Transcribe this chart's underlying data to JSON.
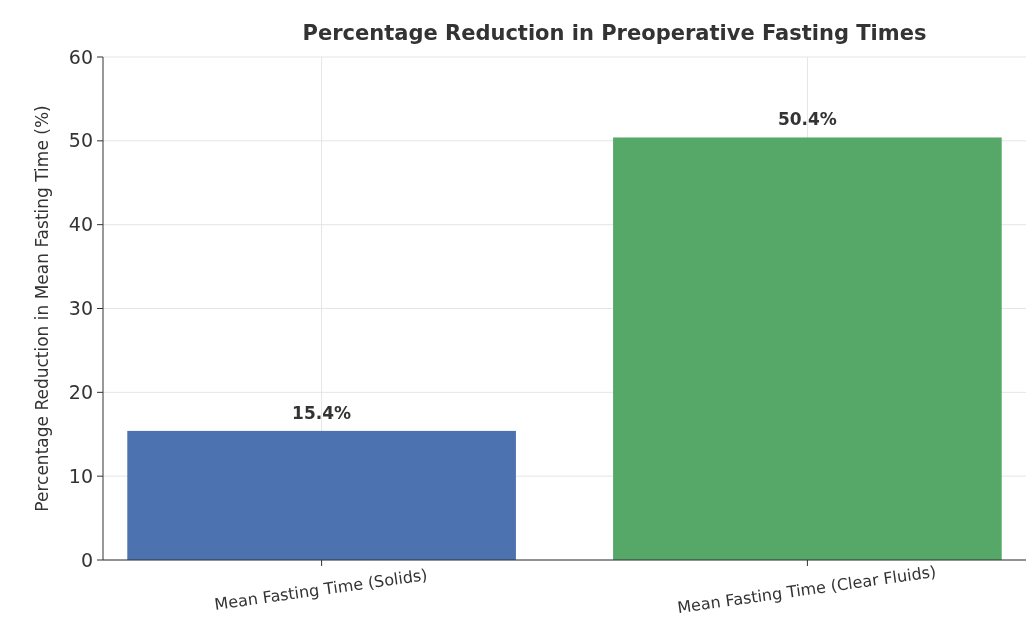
{
  "chart_data": {
    "type": "bar",
    "title": "Percentage Reduction in Preoperative Fasting Times",
    "ylabel": "Percentage Reduction in Mean Fasting Time (%)",
    "categories": [
      "Mean Fasting Time (Solids)",
      "Mean Fasting Time (Clear Fluids)"
    ],
    "values": [
      15.4,
      50.4
    ],
    "colors": [
      "#4c72b0",
      "#55a868"
    ],
    "value_labels": [
      "15.4%",
      "50.4%"
    ],
    "ylim": [
      0,
      60
    ],
    "yticks": [
      0,
      10,
      20,
      30,
      40,
      50,
      60
    ],
    "grid": true
  }
}
